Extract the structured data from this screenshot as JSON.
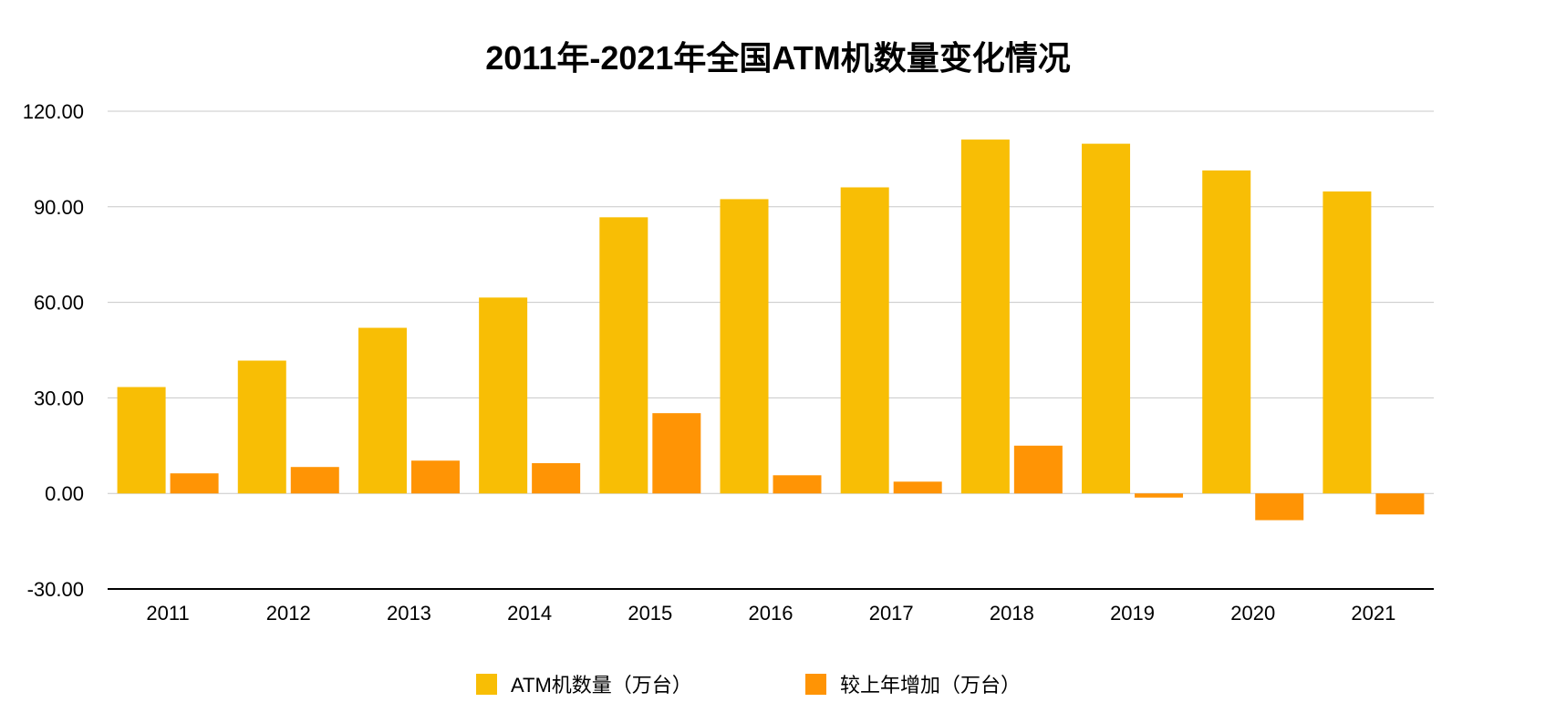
{
  "chart_data": {
    "type": "bar",
    "title": "2011年-2021年全国ATM机数量变化情况",
    "categories": [
      "2011",
      "2012",
      "2013",
      "2014",
      "2015",
      "2016",
      "2017",
      "2018",
      "2019",
      "2020",
      "2021"
    ],
    "series": [
      {
        "name": "ATM机数量（万台）",
        "color": "#F8BE05",
        "values": [
          33.4,
          41.7,
          52.0,
          61.5,
          86.7,
          92.4,
          96.1,
          111.1,
          109.8,
          101.4,
          94.8
        ]
      },
      {
        "name": "较上年增加（万台）",
        "color": "#FF9405",
        "values": [
          6.3,
          8.3,
          10.3,
          9.5,
          25.2,
          5.7,
          3.7,
          15.0,
          -1.3,
          -8.4,
          -6.6
        ]
      }
    ],
    "ylim": [
      -30,
      120
    ],
    "yticks": [
      "-30.00",
      "0.00",
      "30.00",
      "60.00",
      "90.00",
      "120.00"
    ],
    "ytick_values": [
      -30,
      0,
      30,
      60,
      90,
      120
    ],
    "xlabel": "",
    "ylabel": "",
    "grid": true,
    "legend_position": "bottom"
  }
}
